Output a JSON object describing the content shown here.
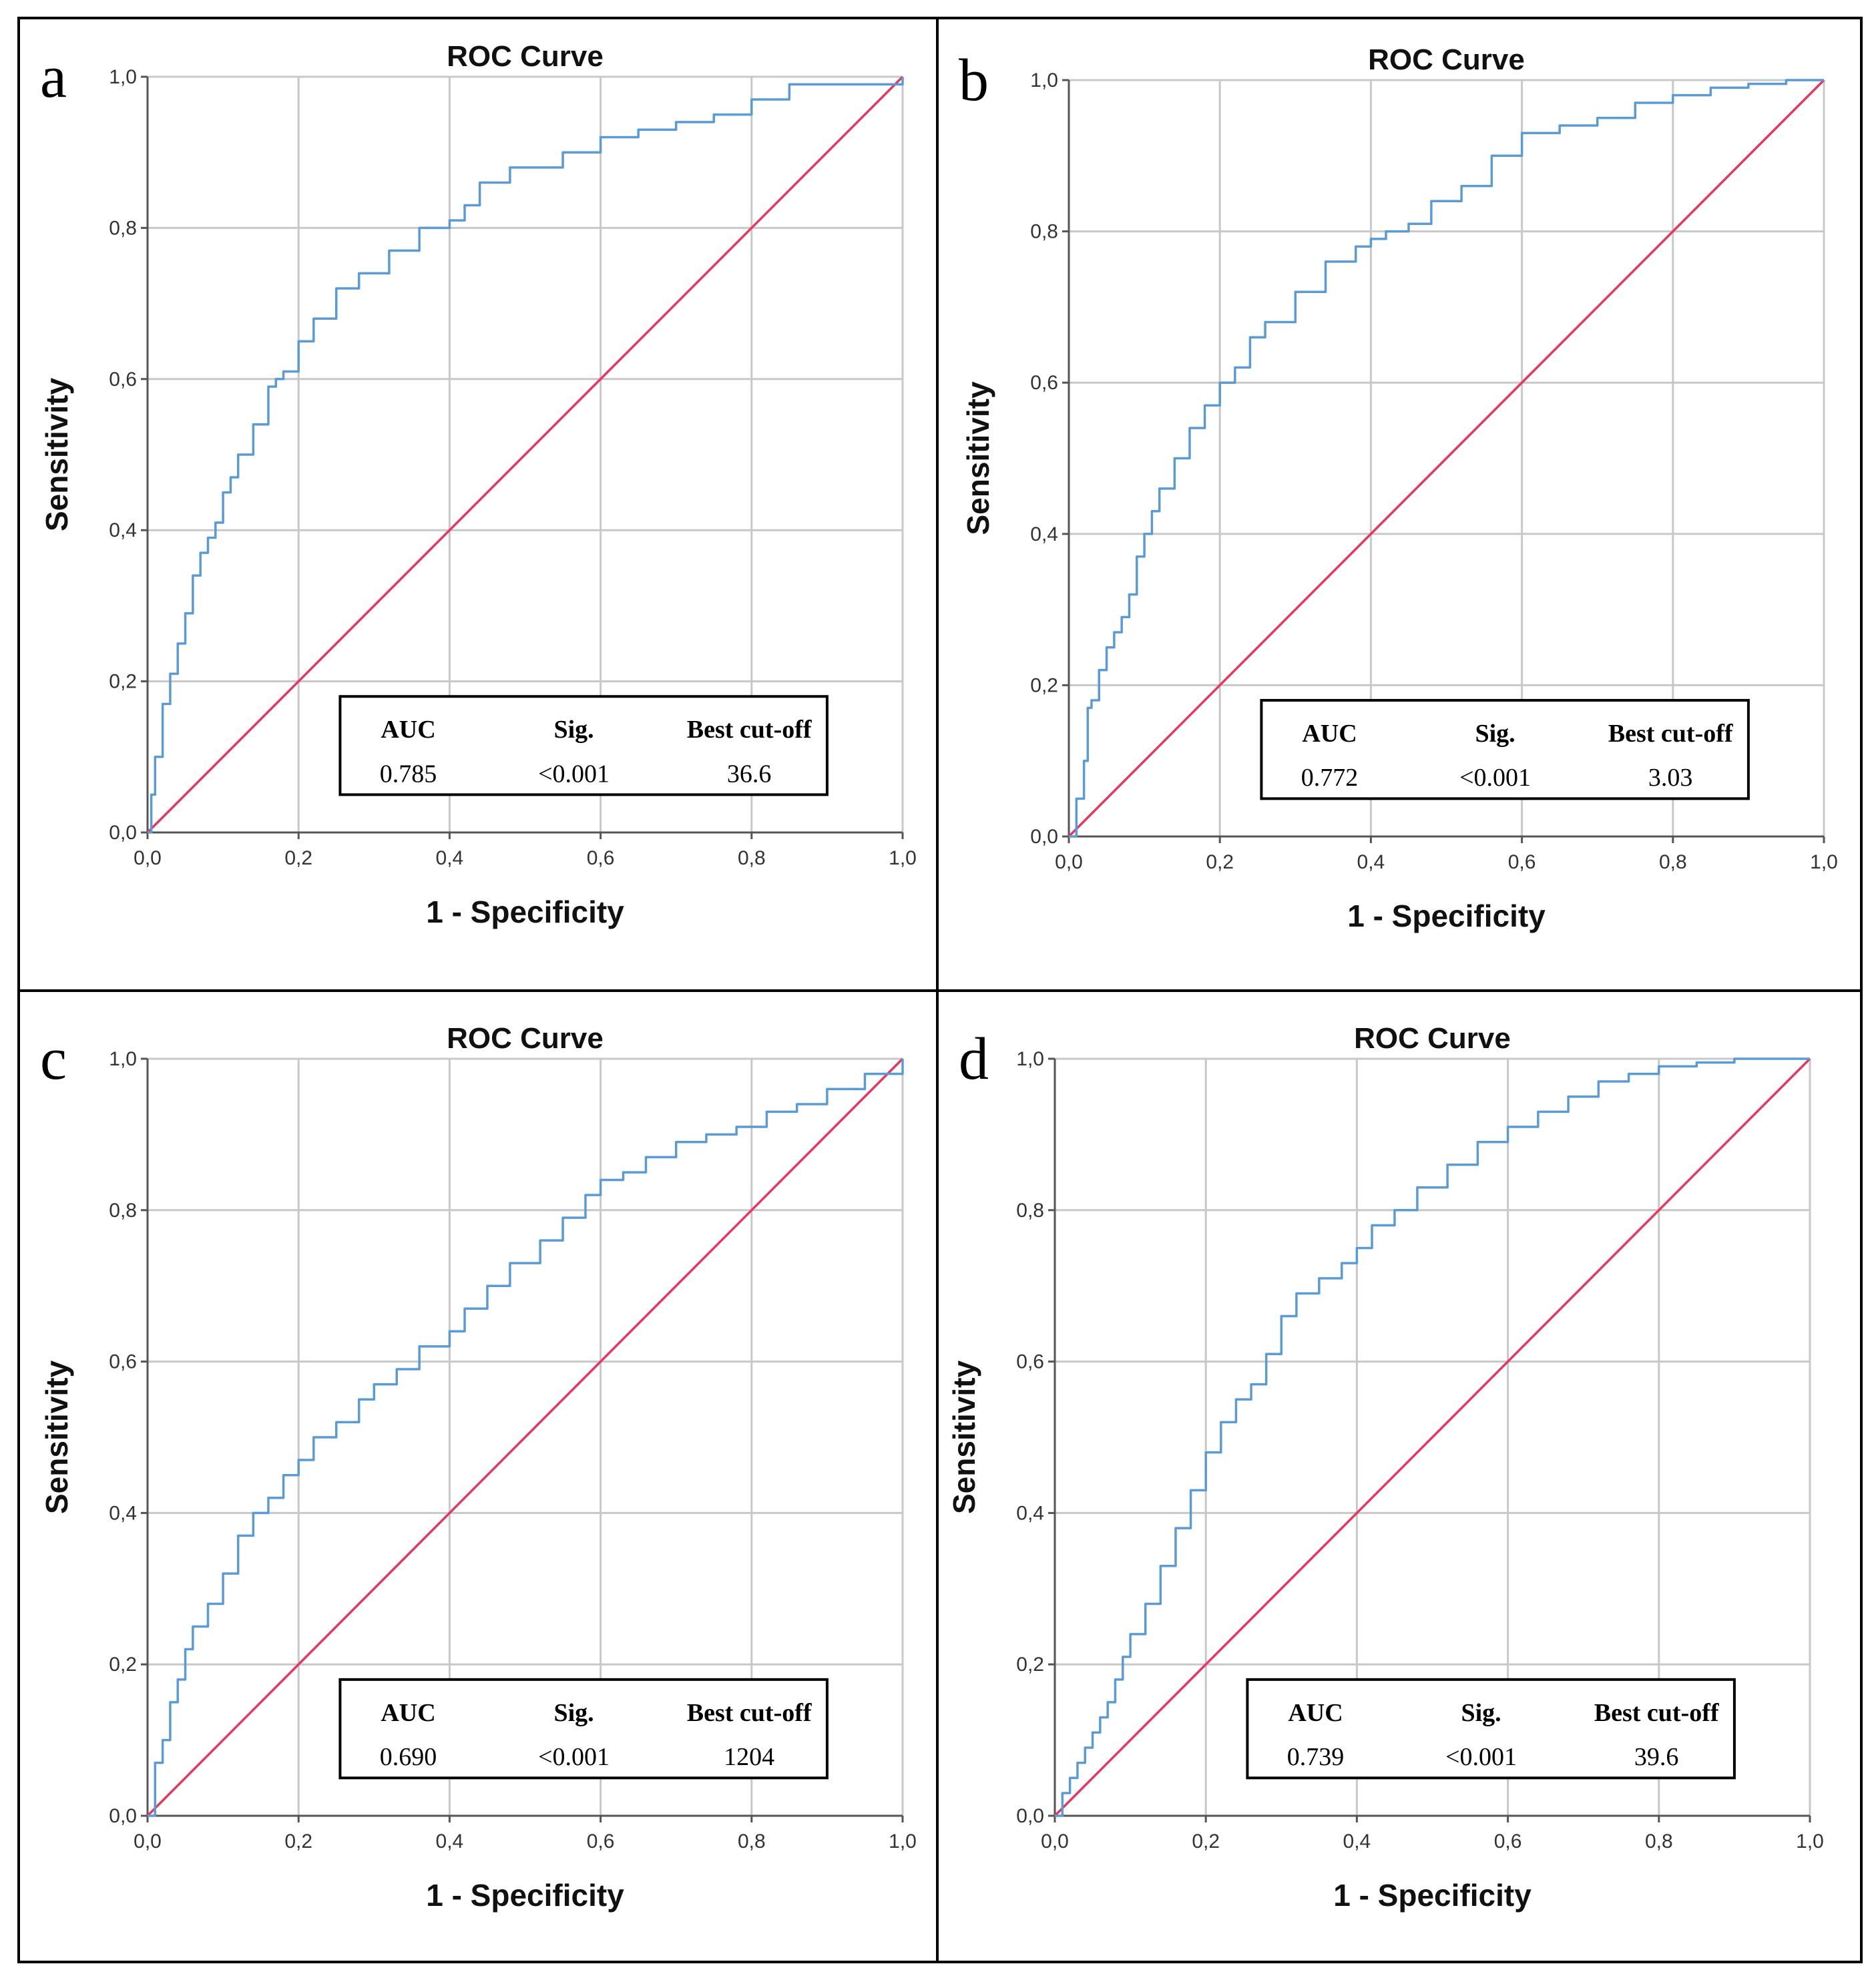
{
  "figure_title": "",
  "chart_data": [
    {
      "panel": "a",
      "type": "line",
      "title": "ROC Curve",
      "xlabel": "1 - Specificity",
      "ylabel": "Sensitivity",
      "xlim": [
        0,
        1
      ],
      "ylim": [
        0,
        1
      ],
      "xticks": [
        "0,0",
        "0,2",
        "0,4",
        "0,6",
        "0,8",
        "1,0"
      ],
      "yticks": [
        "0,0",
        "0,2",
        "0,4",
        "0,6",
        "0,8",
        "1,0"
      ],
      "grid": true,
      "series": [
        {
          "name": "ROC",
          "color": "#5b9bd5",
          "x": [
            0,
            0.005,
            0.01,
            0.02,
            0.03,
            0.04,
            0.05,
            0.06,
            0.07,
            0.08,
            0.09,
            0.1,
            0.11,
            0.12,
            0.14,
            0.16,
            0.17,
            0.18,
            0.2,
            0.22,
            0.25,
            0.28,
            0.32,
            0.36,
            0.4,
            0.42,
            0.44,
            0.48,
            0.52,
            0.55,
            0.6,
            0.65,
            0.7,
            0.75,
            0.8,
            0.85,
            0.9,
            1.0
          ],
          "y": [
            0,
            0.05,
            0.1,
            0.17,
            0.21,
            0.25,
            0.29,
            0.34,
            0.37,
            0.39,
            0.41,
            0.45,
            0.47,
            0.5,
            0.54,
            0.59,
            0.6,
            0.61,
            0.65,
            0.68,
            0.72,
            0.74,
            0.77,
            0.8,
            0.81,
            0.83,
            0.86,
            0.88,
            0.88,
            0.9,
            0.92,
            0.93,
            0.94,
            0.95,
            0.97,
            0.99,
            0.99,
            1.0
          ]
        },
        {
          "name": "Reference",
          "color": "#e8375f",
          "x": [
            0,
            1
          ],
          "y": [
            0,
            1
          ]
        }
      ],
      "legend": {
        "position": "bottom-right",
        "headers": [
          "AUC",
          "Sig.",
          "Best cut-off"
        ],
        "values": [
          "0.785",
          "<0.001",
          "36.6"
        ]
      }
    },
    {
      "panel": "b",
      "type": "line",
      "title": "ROC Curve",
      "xlabel": "1 - Specificity",
      "ylabel": "Sensitivity",
      "xlim": [
        0,
        1
      ],
      "ylim": [
        0,
        1
      ],
      "xticks": [
        "0,0",
        "0,2",
        "0,4",
        "0,6",
        "0,8",
        "1,0"
      ],
      "yticks": [
        "0,0",
        "0,2",
        "0,4",
        "0,6",
        "0,8",
        "1,0"
      ],
      "grid": true,
      "series": [
        {
          "name": "ROC",
          "color": "#5b9bd5",
          "x": [
            0,
            0.01,
            0.02,
            0.025,
            0.03,
            0.04,
            0.05,
            0.06,
            0.07,
            0.08,
            0.09,
            0.1,
            0.11,
            0.12,
            0.14,
            0.16,
            0.18,
            0.2,
            0.22,
            0.24,
            0.26,
            0.3,
            0.34,
            0.38,
            0.4,
            0.42,
            0.45,
            0.48,
            0.52,
            0.56,
            0.6,
            0.65,
            0.7,
            0.75,
            0.8,
            0.85,
            0.9,
            0.95,
            1.0
          ],
          "y": [
            0,
            0.05,
            0.1,
            0.17,
            0.18,
            0.22,
            0.25,
            0.27,
            0.29,
            0.32,
            0.37,
            0.4,
            0.43,
            0.46,
            0.5,
            0.54,
            0.57,
            0.6,
            0.62,
            0.66,
            0.68,
            0.72,
            0.76,
            0.78,
            0.79,
            0.8,
            0.81,
            0.84,
            0.86,
            0.9,
            0.93,
            0.94,
            0.95,
            0.97,
            0.98,
            0.99,
            0.995,
            1.0,
            1.0
          ]
        },
        {
          "name": "Reference",
          "color": "#e8375f",
          "x": [
            0,
            1
          ],
          "y": [
            0,
            1
          ]
        }
      ],
      "legend": {
        "position": "bottom-right",
        "headers": [
          "AUC",
          "Sig.",
          "Best cut-off"
        ],
        "values": [
          "0.772",
          "<0.001",
          "3.03"
        ]
      }
    },
    {
      "panel": "c",
      "type": "line",
      "title": "ROC Curve",
      "xlabel": "1 - Specificity",
      "ylabel": "Sensitivity",
      "xlim": [
        0,
        1
      ],
      "ylim": [
        0,
        1
      ],
      "xticks": [
        "0,0",
        "0,2",
        "0,4",
        "0,6",
        "0,8",
        "1,0"
      ],
      "yticks": [
        "0,0",
        "0,2",
        "0,4",
        "0,6",
        "0,8",
        "1,0"
      ],
      "grid": true,
      "series": [
        {
          "name": "ROC",
          "color": "#5b9bd5",
          "x": [
            0,
            0.01,
            0.02,
            0.03,
            0.04,
            0.05,
            0.06,
            0.08,
            0.1,
            0.12,
            0.14,
            0.16,
            0.18,
            0.2,
            0.22,
            0.25,
            0.28,
            0.3,
            0.33,
            0.36,
            0.4,
            0.42,
            0.45,
            0.48,
            0.52,
            0.55,
            0.58,
            0.6,
            0.63,
            0.66,
            0.7,
            0.74,
            0.78,
            0.82,
            0.86,
            0.9,
            0.95,
            1.0
          ],
          "y": [
            0,
            0.07,
            0.1,
            0.15,
            0.18,
            0.22,
            0.25,
            0.28,
            0.32,
            0.37,
            0.4,
            0.42,
            0.45,
            0.47,
            0.5,
            0.52,
            0.55,
            0.57,
            0.59,
            0.62,
            0.64,
            0.67,
            0.7,
            0.73,
            0.76,
            0.79,
            0.82,
            0.84,
            0.85,
            0.87,
            0.89,
            0.9,
            0.91,
            0.93,
            0.94,
            0.96,
            0.98,
            1.0
          ]
        },
        {
          "name": "Reference",
          "color": "#e8375f",
          "x": [
            0,
            1
          ],
          "y": [
            0,
            1
          ]
        }
      ],
      "legend": {
        "position": "bottom-right",
        "headers": [
          "AUC",
          "Sig.",
          "Best cut-off"
        ],
        "values": [
          "0.690",
          "<0.001",
          "1204"
        ]
      }
    },
    {
      "panel": "d",
      "type": "line",
      "title": "ROC Curve",
      "xlabel": "1 - Specificity",
      "ylabel": "Sensitivity",
      "xlim": [
        0,
        1
      ],
      "ylim": [
        0,
        1
      ],
      "xticks": [
        "0,0",
        "0,2",
        "0,4",
        "0,6",
        "0,8",
        "1,0"
      ],
      "yticks": [
        "0,0",
        "0,2",
        "0,4",
        "0,6",
        "0,8",
        "1,0"
      ],
      "grid": true,
      "series": [
        {
          "name": "ROC",
          "color": "#5b9bd5",
          "x": [
            0,
            0.01,
            0.02,
            0.03,
            0.04,
            0.05,
            0.06,
            0.07,
            0.08,
            0.09,
            0.1,
            0.12,
            0.14,
            0.16,
            0.18,
            0.2,
            0.22,
            0.24,
            0.26,
            0.28,
            0.3,
            0.32,
            0.35,
            0.38,
            0.4,
            0.42,
            0.45,
            0.48,
            0.52,
            0.56,
            0.6,
            0.64,
            0.68,
            0.72,
            0.76,
            0.8,
            0.85,
            0.9,
            0.95,
            1.0
          ],
          "y": [
            0,
            0.03,
            0.05,
            0.07,
            0.09,
            0.11,
            0.13,
            0.15,
            0.18,
            0.21,
            0.24,
            0.28,
            0.33,
            0.38,
            0.43,
            0.48,
            0.52,
            0.55,
            0.57,
            0.61,
            0.66,
            0.69,
            0.71,
            0.73,
            0.75,
            0.78,
            0.8,
            0.83,
            0.86,
            0.89,
            0.91,
            0.93,
            0.95,
            0.97,
            0.98,
            0.99,
            0.995,
            1.0,
            1.0,
            1.0
          ]
        },
        {
          "name": "Reference",
          "color": "#e8375f",
          "x": [
            0,
            1
          ],
          "y": [
            0,
            1
          ]
        }
      ],
      "legend": {
        "position": "bottom-right",
        "headers": [
          "AUC",
          "Sig.",
          "Best cut-off"
        ],
        "values": [
          "0.739",
          "<0.001",
          "39.6"
        ]
      }
    }
  ]
}
